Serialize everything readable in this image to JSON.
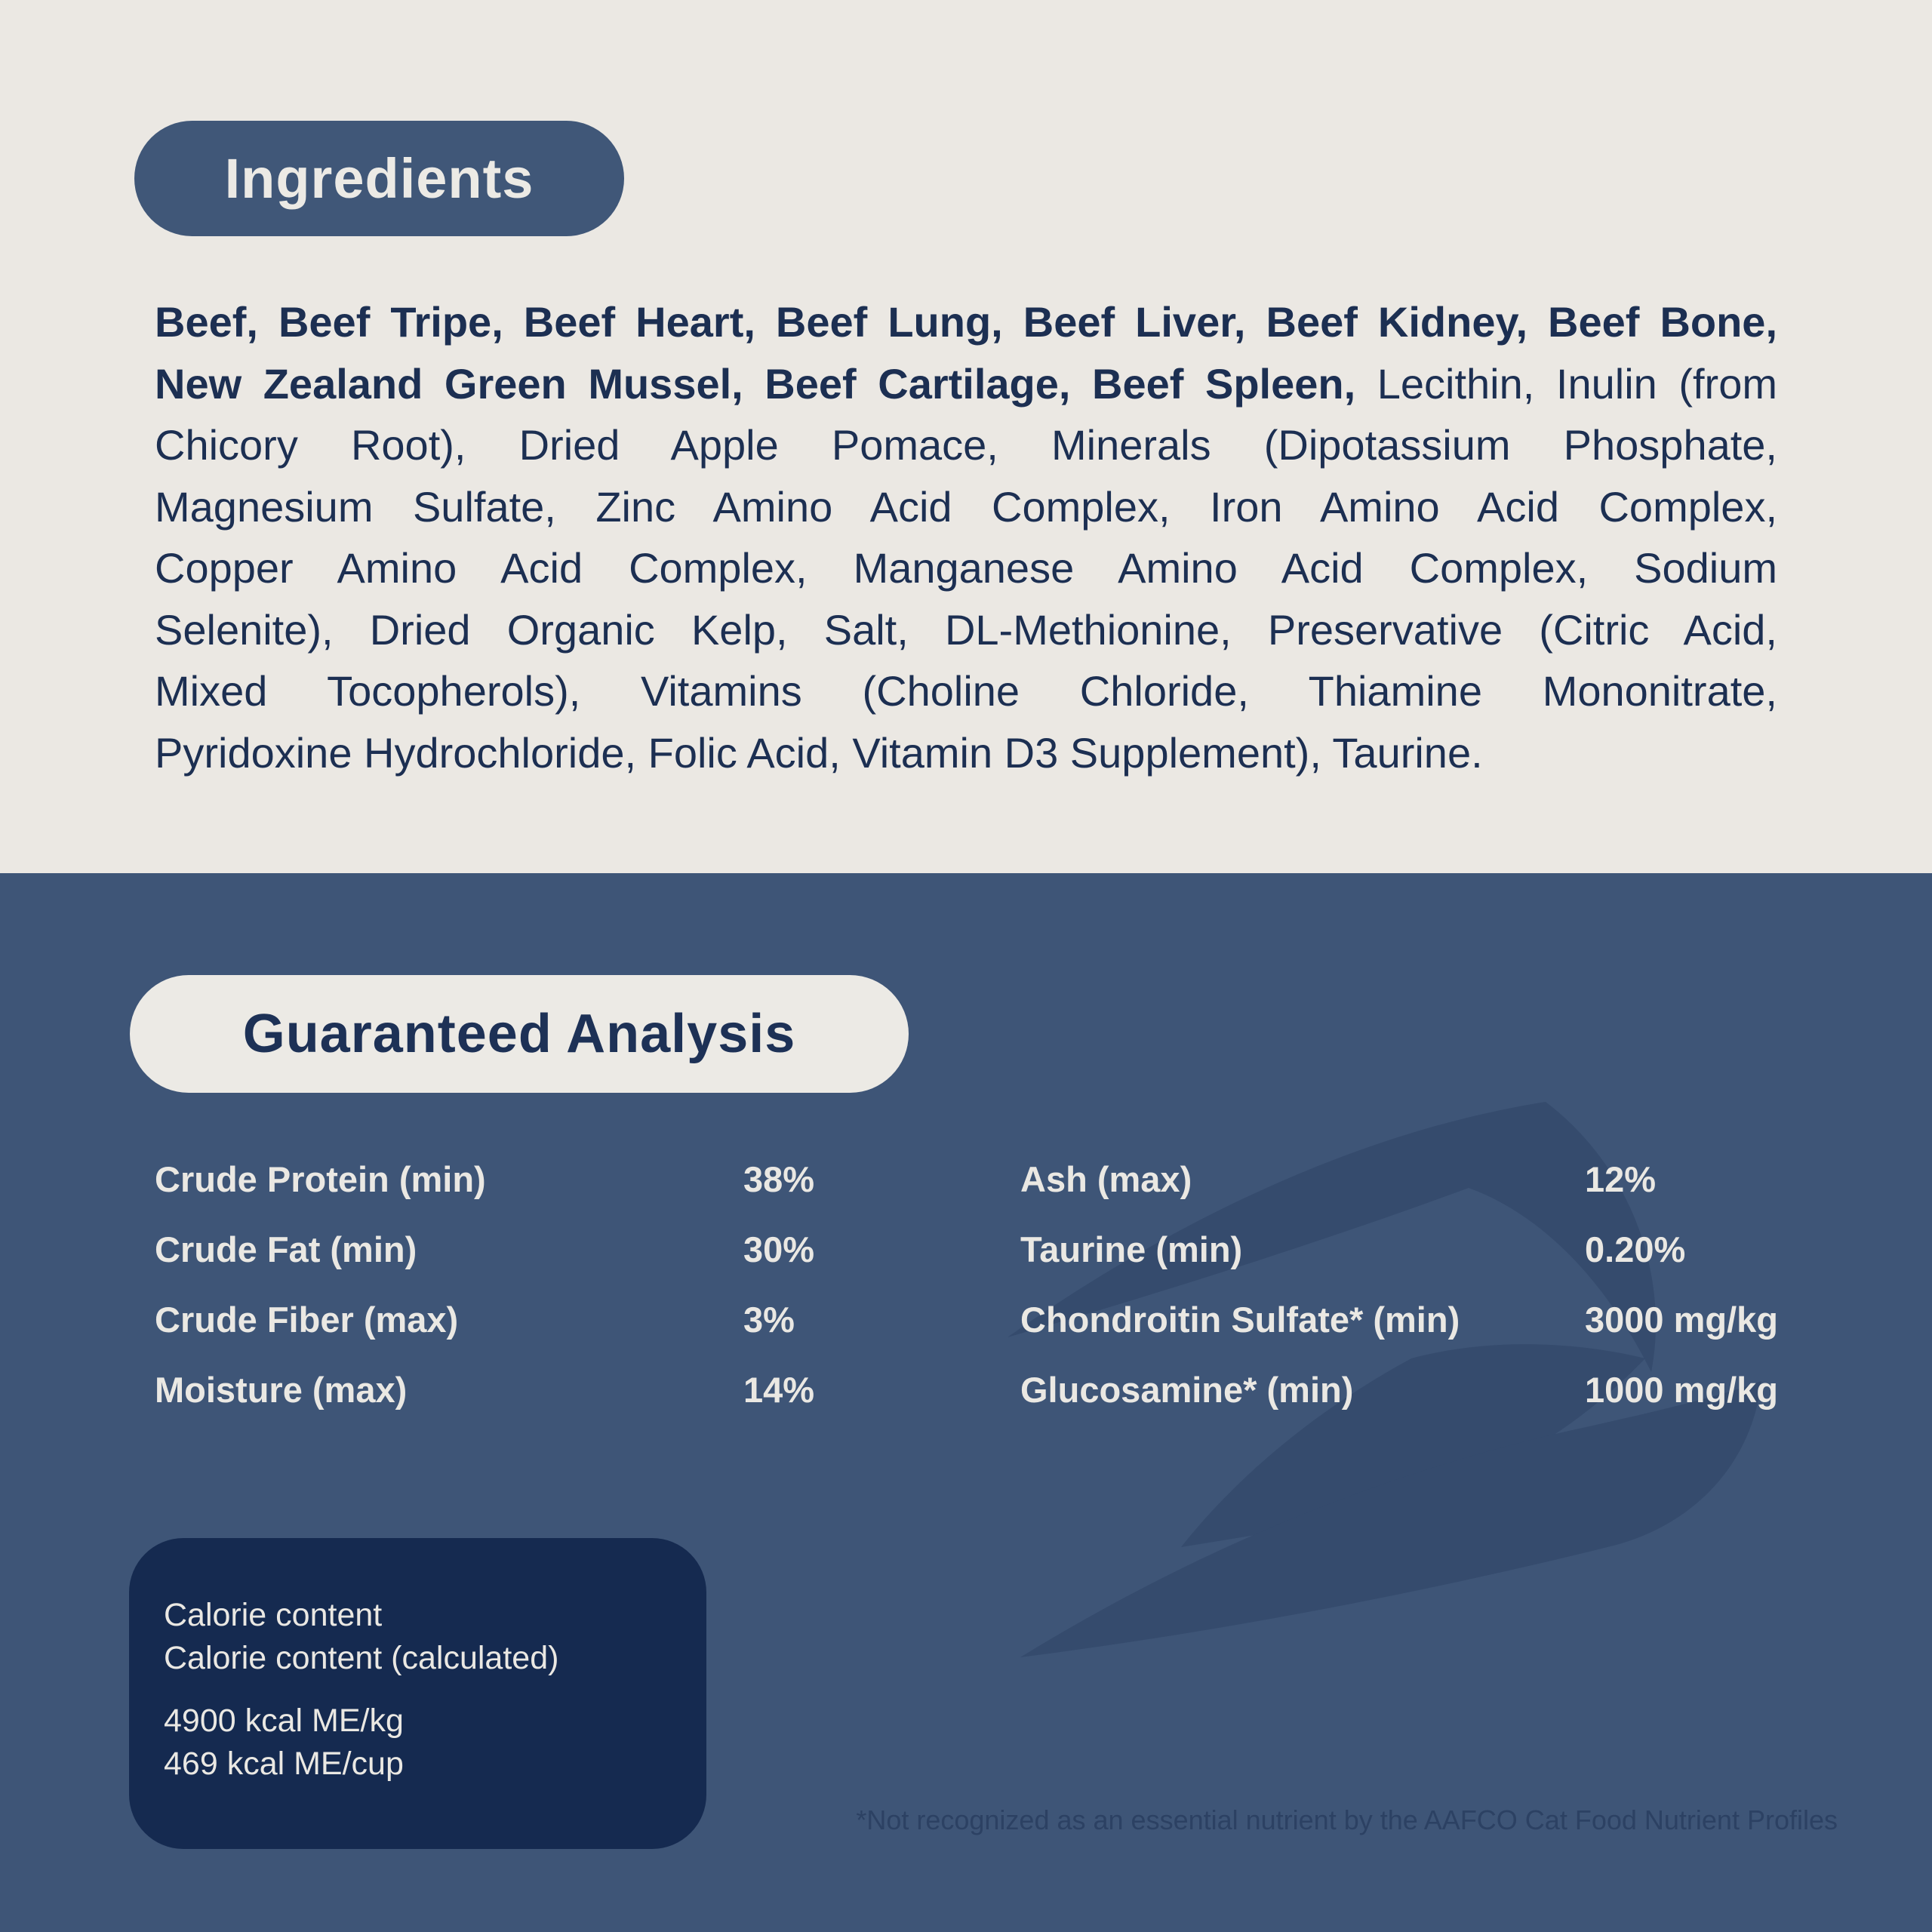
{
  "ingredients": {
    "badge_label": "Ingredients",
    "lines": [
      {
        "bold": "Beef, Beef Tripe, Beef Heart, Beef Lung, Beef Liver, Beef Kidney, Beef Bone,",
        "regular": ""
      },
      {
        "bold": "New Zealand Green Mussel, Beef Cartilage, Beef Spleen,",
        "regular": " Lecithin, Inulin (from"
      },
      {
        "bold": "",
        "regular": "Chicory Root), Dried Apple Pomace, Minerals (Dipotassium Phosphate,"
      },
      {
        "bold": "",
        "regular": "Magnesium Sulfate, Zinc Amino Acid Complex, Iron Amino Acid Complex,"
      },
      {
        "bold": "",
        "regular": "Copper Amino Acid Complex, Manganese Amino Acid Complex, Sodium"
      },
      {
        "bold": "",
        "regular": "Selenite), Dried Organic Kelp, Salt, DL-Methionine, Preservative (Citric Acid,"
      },
      {
        "bold": "",
        "regular": "Mixed Tocopherols), Vitamins (Choline Chloride, Thiamine Mononitrate,"
      },
      {
        "bold": "",
        "regular": "Pyridoxine Hydrochloride, Folic Acid, Vitamin D3 Supplement), Taurine."
      }
    ]
  },
  "analysis": {
    "badge_label": "Guaranteed Analysis",
    "left_rows": [
      {
        "label": "Crude Protein (min)",
        "value": "38%"
      },
      {
        "label": "Crude Fat (min)",
        "value": "30%"
      },
      {
        "label": "Crude Fiber (max)",
        "value": "3%"
      },
      {
        "label": "Moisture (max)",
        "value": "14%"
      }
    ],
    "right_rows": [
      {
        "label": "Ash (max)",
        "value": "12%"
      },
      {
        "label": "Taurine (min)",
        "value": "0.20%"
      },
      {
        "label": "Chondroitin Sulfate* (min)",
        "value": "3000 mg/kg"
      },
      {
        "label": "Glucosamine* (min)",
        "value": "1000 mg/kg"
      }
    ]
  },
  "calorie_box": {
    "title_line1": "Calorie content",
    "title_line2": "Calorie content (calculated)",
    "value_line1": "4900 kcal ME/kg",
    "value_line2": "469 kcal ME/cup"
  },
  "footnote": "*Not recognized as an essential nutrient by the AAFCO Cat Food Nutrient Profiles",
  "colors": {
    "cream_background": "#EBE8E3",
    "cream_badge": "#ECEAE5",
    "slate_blue_background": "#3E5577",
    "swirl_accent": "#354B6D",
    "navy_box": "#152A50",
    "navy_text": "#1C2F52"
  }
}
